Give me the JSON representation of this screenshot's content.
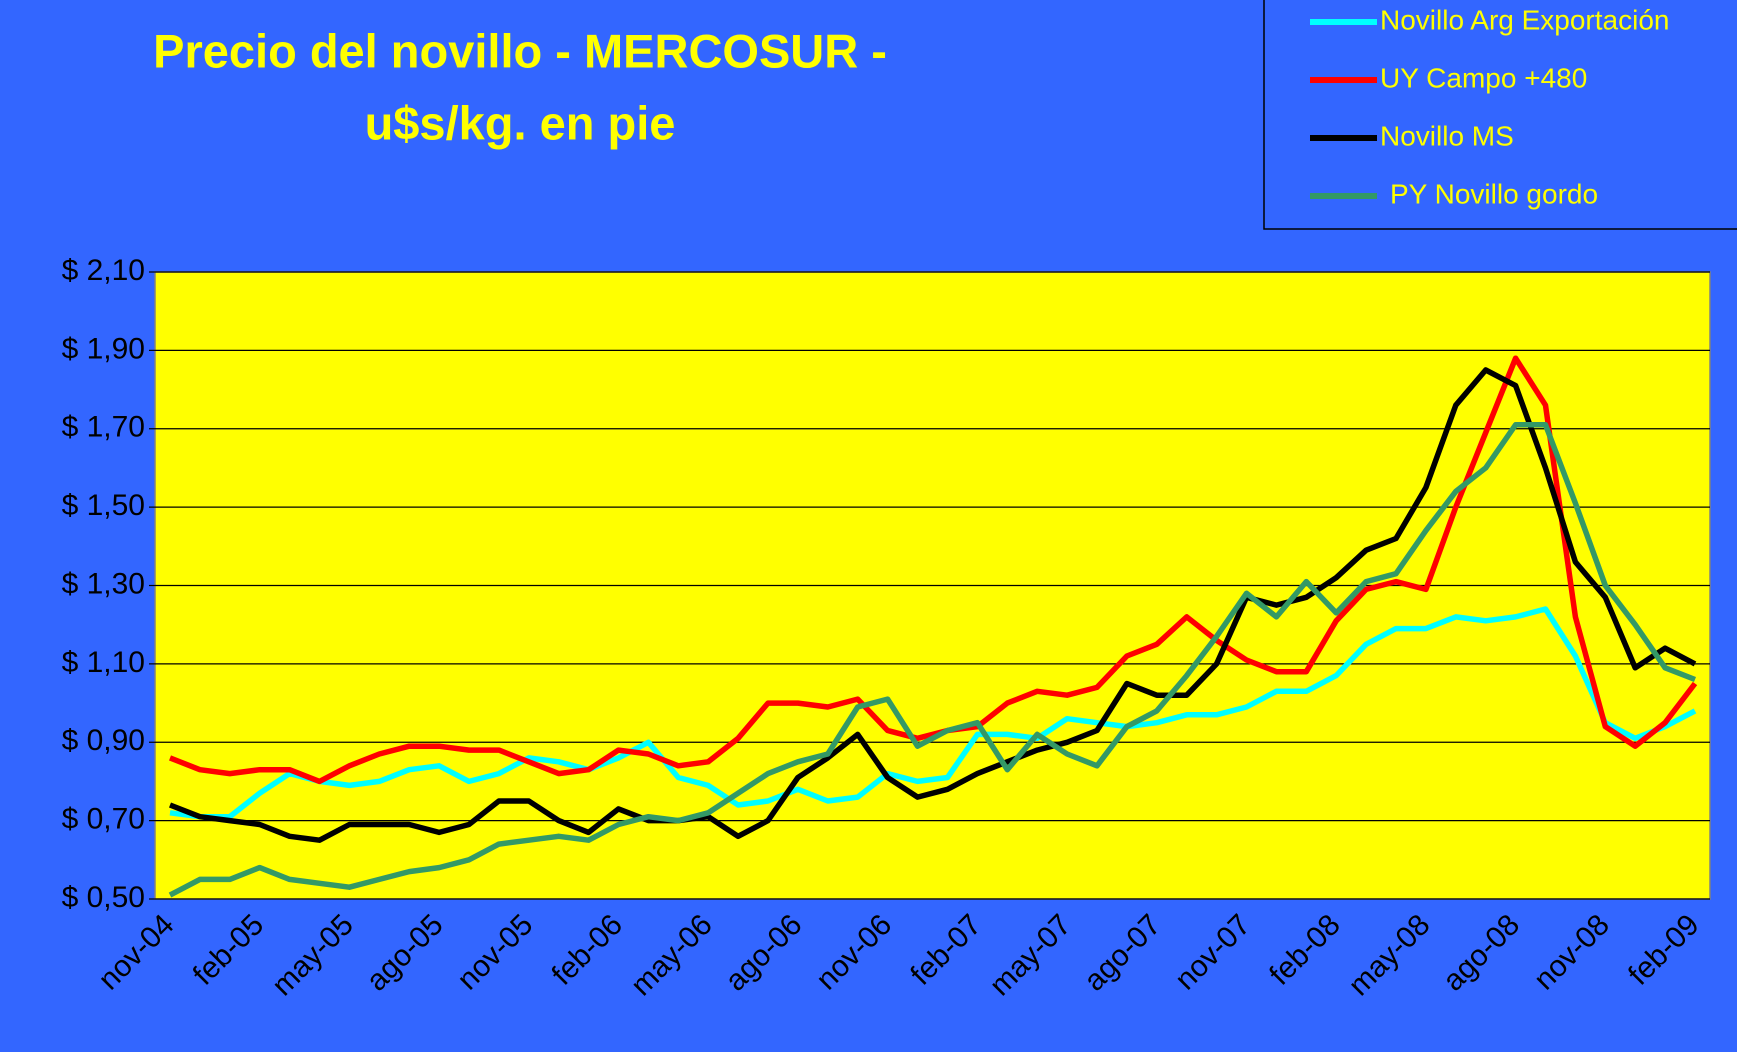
{
  "chart_data": {
    "type": "line",
    "title": [
      "Precio del novillo - MERCOSUR -",
      "u$s/kg. en pie"
    ],
    "categories": [
      "nov-04",
      null,
      null,
      "feb-05",
      null,
      null,
      "may-05",
      null,
      null,
      "ago-05",
      null,
      null,
      "nov-05",
      null,
      null,
      "feb-06",
      null,
      null,
      "may-06",
      null,
      null,
      "ago-06",
      null,
      null,
      "nov-06",
      null,
      null,
      "feb-07",
      null,
      null,
      "may-07",
      null,
      null,
      "ago-07",
      null,
      null,
      "nov-07",
      null,
      null,
      "feb-08",
      null,
      null,
      "may-08",
      null,
      null,
      "ago-08",
      null,
      null,
      "nov-08",
      null,
      null,
      "feb-09"
    ],
    "series": [
      {
        "name": "Novillo Arg Exportación",
        "color": "#00ffff",
        "values": [
          0.72,
          0.71,
          0.71,
          0.77,
          0.82,
          0.8,
          0.79,
          0.8,
          0.83,
          0.84,
          0.8,
          0.82,
          0.86,
          0.85,
          0.83,
          0.86,
          0.9,
          0.81,
          0.79,
          0.74,
          0.75,
          0.78,
          0.75,
          0.76,
          0.82,
          0.8,
          0.81,
          0.92,
          0.92,
          0.91,
          0.96,
          0.95,
          0.94,
          0.95,
          0.97,
          0.97,
          0.99,
          1.03,
          1.03,
          1.07,
          1.15,
          1.19,
          1.19,
          1.22,
          1.21,
          1.22,
          1.24,
          1.12,
          0.95,
          0.91,
          0.94,
          0.98
        ]
      },
      {
        "name": "UY Campo +480",
        "color": "#ff0000",
        "values": [
          0.86,
          0.83,
          0.82,
          0.83,
          0.83,
          0.8,
          0.84,
          0.87,
          0.89,
          0.89,
          0.88,
          0.88,
          0.85,
          0.82,
          0.83,
          0.88,
          0.87,
          0.84,
          0.85,
          0.91,
          1.0,
          1.0,
          0.99,
          1.01,
          0.93,
          0.91,
          0.93,
          0.94,
          1.0,
          1.03,
          1.02,
          1.04,
          1.12,
          1.15,
          1.22,
          1.16,
          1.11,
          1.08,
          1.08,
          1.21,
          1.29,
          1.31,
          1.29,
          1.5,
          1.69,
          1.88,
          1.76,
          1.22,
          0.94,
          0.89,
          0.95,
          1.05
        ]
      },
      {
        "name": "Novillo MS",
        "color": "#000000",
        "values": [
          0.74,
          0.71,
          0.7,
          0.69,
          0.66,
          0.65,
          0.69,
          0.69,
          0.69,
          0.67,
          0.69,
          0.75,
          0.75,
          0.7,
          0.67,
          0.73,
          0.7,
          0.7,
          0.71,
          0.66,
          0.7,
          0.81,
          0.86,
          0.92,
          0.81,
          0.76,
          0.78,
          0.82,
          0.85,
          0.88,
          0.9,
          0.93,
          1.05,
          1.02,
          1.02,
          1.1,
          1.27,
          1.25,
          1.27,
          1.32,
          1.39,
          1.42,
          1.55,
          1.76,
          1.85,
          1.81,
          1.6,
          1.36,
          1.27,
          1.09,
          1.14,
          1.1
        ]
      },
      {
        "name": "PY Novillo gordo",
        "color": "#339966",
        "values": [
          0.51,
          0.55,
          0.55,
          0.58,
          0.55,
          0.54,
          0.53,
          0.55,
          0.57,
          0.58,
          0.6,
          0.64,
          0.65,
          0.66,
          0.65,
          0.69,
          0.71,
          0.7,
          0.72,
          0.77,
          0.82,
          0.85,
          0.87,
          0.99,
          1.01,
          0.89,
          0.93,
          0.95,
          0.83,
          0.92,
          0.87,
          0.84,
          0.94,
          0.98,
          1.07,
          1.17,
          1.28,
          1.22,
          1.31,
          1.23,
          1.31,
          1.33,
          1.44,
          1.54,
          1.6,
          1.71,
          1.71,
          1.51,
          1.3,
          1.2,
          1.09,
          1.06
        ]
      }
    ],
    "ylim": [
      0.5,
      2.1
    ],
    "yticks": [
      {
        "value": 0.5,
        "label": "$ 0,50"
      },
      {
        "value": 0.7,
        "label": "$ 0,70"
      },
      {
        "value": 0.9,
        "label": "$ 0,90"
      },
      {
        "value": 1.1,
        "label": "$ 1,10"
      },
      {
        "value": 1.3,
        "label": "$ 1,30"
      },
      {
        "value": 1.5,
        "label": "$ 1,50"
      },
      {
        "value": 1.7,
        "label": "$ 1,70"
      },
      {
        "value": 1.9,
        "label": "$ 1,90"
      },
      {
        "value": 2.1,
        "label": "$ 2,10"
      }
    ],
    "grid": true,
    "legend": "top-right"
  }
}
